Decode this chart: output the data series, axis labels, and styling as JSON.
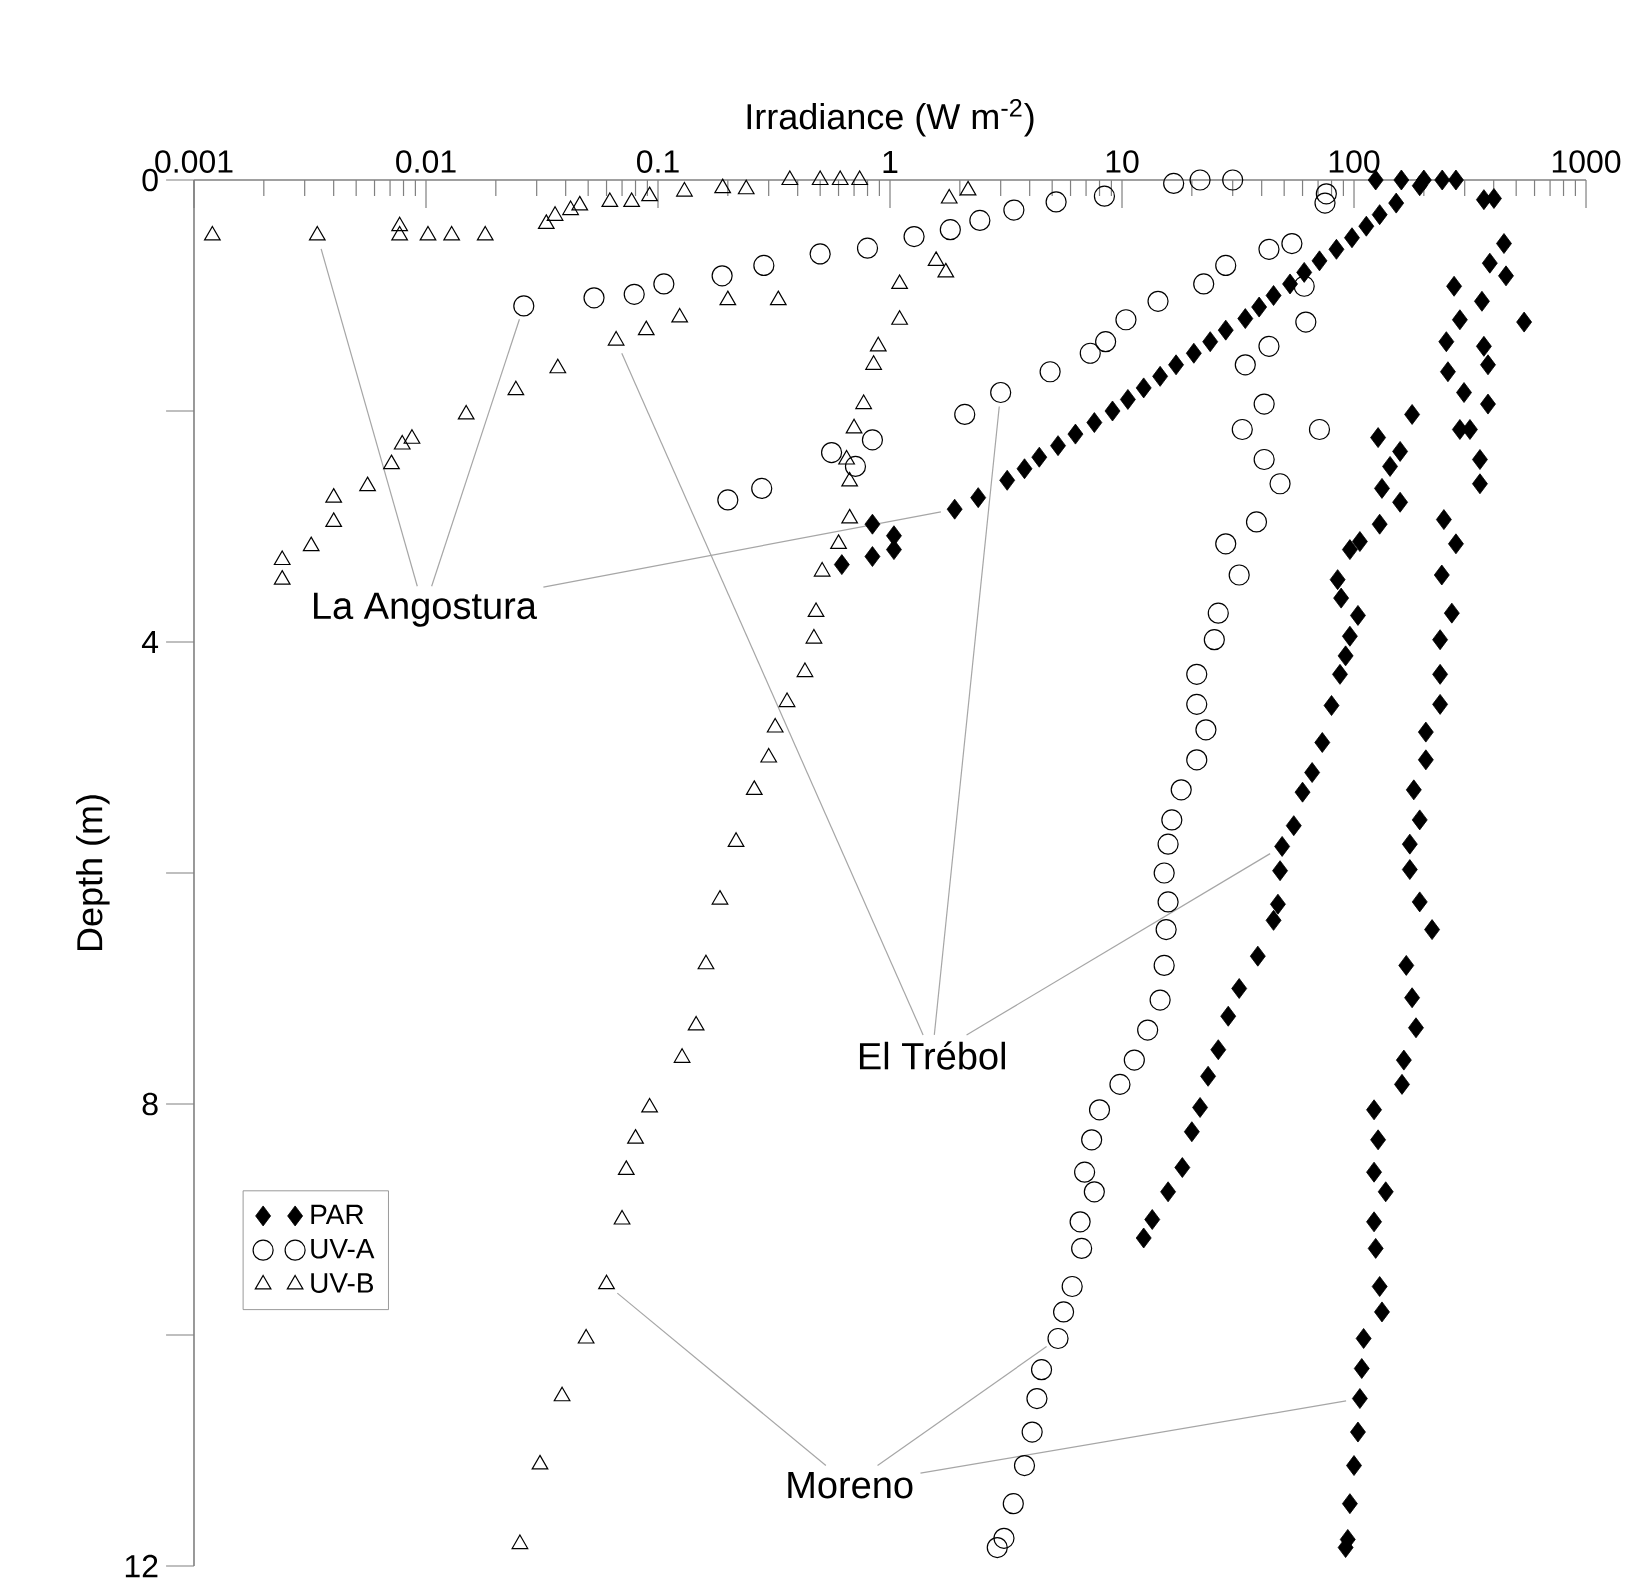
{
  "chart_data": {
    "type": "scatter",
    "xlabel": "Irradiance (W m$^{-2}$)",
    "ylabel": "Depth (m)",
    "log": "x",
    "xlim": [
      0.001,
      1000
    ],
    "xticks": [
      0.001,
      0.01,
      0.1,
      1,
      10,
      100,
      1000
    ],
    "ylim": [
      12,
      0
    ],
    "yticks": [
      0,
      {
        "value": 2,
        "label": null
      },
      4,
      {
        "value": 6,
        "label": null
      },
      8,
      {
        "value": 10,
        "label": null
      },
      12
    ],
    "legend": "left",
    "annotations": [
      {
        "text": "La Angostura",
        "x": 1.9,
        "y": 2.85
      },
      {
        "text": "El Trébol",
        "x": 49,
        "y": 5.77
      },
      {
        "text": "Moreno",
        "x": 106,
        "y": 10.55
      }
    ],
    "series": [
      {
        "name": "PAR",
        "color": "#000000",
        "marker": "diamond",
        "x": [
          124,
          160,
          192,
          152,
          129,
          113,
          98,
          84,
          71,
          61,
          53,
          45,
          39,
          34,
          28,
          24,
          20.4,
          17.1,
          14.6,
          12.4,
          10.6,
          9.1,
          7.6,
          6.3,
          5.3,
          4.4,
          3.8,
          3.2,
          2.4,
          1.9,
          0.84,
          1.04,
          1.04,
          0.84,
          0.62
        ],
        "values": [
          0,
          0,
          0.05,
          0.2,
          0.3,
          0.4,
          0.5,
          0.6,
          0.7,
          0.8,
          0.9,
          1.0,
          1.1,
          1.2,
          1.3,
          1.4,
          1.5,
          1.6,
          1.7,
          1.8,
          1.9,
          2.0,
          2.1,
          2.2,
          2.3,
          2.4,
          2.5,
          2.6,
          2.75,
          2.85,
          2.98,
          3.08,
          3.2,
          3.26,
          3.33
        ]
      },
      {
        "name": "UV-A",
        "color": "#000000",
        "marker": "circle",
        "x": [
          21.7,
          30,
          16.7,
          8.4,
          5.2,
          3.42,
          2.44,
          1.82,
          1.27,
          0.8,
          0.5,
          0.286,
          0.189,
          0.106,
          0.079,
          0.053,
          0.0264
        ],
        "values": [
          0,
          0,
          0.03,
          0.14,
          0.19,
          0.26,
          0.35,
          0.43,
          0.49,
          0.59,
          0.64,
          0.74,
          0.83,
          0.9,
          0.99,
          1.02,
          1.09
        ]
      },
      {
        "name": "UV-B",
        "color": "#000000",
        "marker": "triangle",
        "x": [
          0.37,
          0.5,
          0.61,
          0.74,
          0.092,
          0.062,
          0.077,
          0.046,
          0.042,
          0.036,
          0.033,
          0.0077,
          0.018,
          0.0129,
          0.0102,
          0.0077,
          0.0034,
          0.0012
        ],
        "values": [
          0,
          0,
          0,
          0,
          0.14,
          0.19,
          0.19,
          0.22,
          0.26,
          0.31,
          0.38,
          0.4,
          0.48,
          0.48,
          0.48,
          0.48,
          0.48,
          0.48
        ]
      },
      {
        "color": "#000000",
        "marker": "diamond",
        "x": [
          200,
          240,
          275,
          178,
          127,
          158,
          143,
          132,
          158,
          129,
          106,
          96,
          85,
          88,
          104,
          96,
          92,
          87,
          80,
          73,
          66,
          60,
          55,
          49,
          48,
          47,
          45,
          38.5,
          32,
          28.7,
          26,
          23.5,
          21.7,
          20,
          18.2,
          15.8,
          13.5,
          12.4
        ],
        "values": [
          0,
          0,
          0,
          2.03,
          2.23,
          2.35,
          2.48,
          2.67,
          2.79,
          2.98,
          3.13,
          3.2,
          3.46,
          3.62,
          3.77,
          3.95,
          4.12,
          4.28,
          4.55,
          4.87,
          5.13,
          5.3,
          5.59,
          5.77,
          5.98,
          6.27,
          6.41,
          6.72,
          7.0,
          7.24,
          7.53,
          7.76,
          8.03,
          8.24,
          8.55,
          8.76,
          9.0,
          9.16
        ]
      },
      {
        "color": "#000000",
        "marker": "circle",
        "x": [
          54,
          43,
          28,
          22.5,
          14.3,
          10.4,
          8.5,
          7.3,
          4.9,
          3.0,
          2.1,
          0.84,
          0.56,
          0.71,
          0.28,
          0.2
        ],
        "values": [
          0.55,
          0.6,
          0.74,
          0.9,
          1.05,
          1.21,
          1.4,
          1.5,
          1.66,
          1.84,
          2.03,
          2.25,
          2.36,
          2.48,
          2.67,
          2.77
        ]
      },
      {
        "color": "#000000",
        "marker": "triangle",
        "x": [
          0.19,
          0.24,
          0.13,
          0.2,
          0.33,
          0.124,
          0.089,
          0.066,
          0.037,
          0.0244,
          0.0149,
          0.0087,
          0.0079,
          0.0071,
          0.0056,
          0.004,
          0.004,
          0.0032,
          0.0024,
          0.0024
        ],
        "values": [
          0.07,
          0.08,
          0.1,
          1.04,
          1.04,
          1.19,
          1.3,
          1.39,
          1.63,
          1.82,
          2.03,
          2.24,
          2.29,
          2.46,
          2.65,
          2.75,
          2.96,
          3.17,
          3.29,
          3.46
        ]
      },
      {
        "color": "#000000",
        "marker": "diamond",
        "x": [
          401,
          363,
          443,
          385,
          452,
          270,
          356,
          286,
          541,
          250,
          363,
          378,
          254,
          298,
          378,
          286,
          316,
          349,
          349,
          244,
          275,
          239,
          264,
          235,
          235,
          235,
          204,
          204,
          181,
          192,
          174,
          174,
          192,
          217,
          168,
          178,
          185,
          164,
          161,
          122,
          127,
          122,
          137,
          122,
          124,
          129,
          132,
          110,
          108,
          106,
          104,
          100,
          96,
          94,
          92
        ],
        "values": [
          0.16,
          0.17,
          0.55,
          0.72,
          0.83,
          0.92,
          1.05,
          1.21,
          1.23,
          1.4,
          1.44,
          1.6,
          1.66,
          1.84,
          1.94,
          2.16,
          2.16,
          2.42,
          2.63,
          2.94,
          3.15,
          3.42,
          3.75,
          3.98,
          4.28,
          4.54,
          4.78,
          5.02,
          5.28,
          5.54,
          5.75,
          5.97,
          6.25,
          6.49,
          6.8,
          7.08,
          7.34,
          7.62,
          7.83,
          8.05,
          8.31,
          8.59,
          8.76,
          9.02,
          9.25,
          9.58,
          9.8,
          10.03,
          10.29,
          10.55,
          10.84,
          11.13,
          11.46,
          11.77,
          11.84
        ]
      },
      {
        "color": "#000000",
        "marker": "circle",
        "x": [
          76,
          75,
          61,
          62,
          43,
          34,
          41,
          71,
          33,
          41,
          48,
          38,
          28,
          32,
          26,
          25,
          21,
          21,
          23,
          21,
          18,
          16.4,
          15.8,
          15.2,
          15.8,
          15.5,
          15.2,
          14.6,
          12.9,
          11.3,
          9.8,
          8.0,
          7.4,
          6.9,
          7.6,
          6.6,
          6.7,
          6.1,
          5.6,
          5.3,
          4.5,
          4.3,
          4.1,
          3.8,
          3.4,
          3.1,
          2.9
        ],
        "values": [
          0.12,
          0.2,
          0.92,
          1.23,
          1.44,
          1.6,
          1.94,
          2.16,
          2.16,
          2.42,
          2.63,
          2.96,
          3.15,
          3.42,
          3.75,
          3.98,
          4.28,
          4.54,
          4.76,
          5.02,
          5.28,
          5.54,
          5.75,
          6.0,
          6.25,
          6.49,
          6.8,
          7.1,
          7.36,
          7.62,
          7.83,
          8.05,
          8.31,
          8.59,
          8.76,
          9.02,
          9.25,
          9.58,
          9.8,
          10.03,
          10.3,
          10.55,
          10.84,
          11.13,
          11.46,
          11.76,
          11.84
        ]
      },
      {
        "color": "#000000",
        "marker": "triangle",
        "x": [
          2.17,
          1.8,
          1.58,
          1.74,
          1.1,
          1.1,
          0.89,
          0.85,
          0.77,
          0.7,
          0.65,
          0.67,
          0.67,
          0.6,
          0.51,
          0.48,
          0.47,
          0.43,
          0.36,
          0.32,
          0.3,
          0.26,
          0.217,
          0.185,
          0.161,
          0.146,
          0.127,
          0.092,
          0.08,
          0.073,
          0.07,
          0.06,
          0.049,
          0.0386,
          0.031,
          0.0254
        ],
        "values": [
          0.09,
          0.16,
          0.7,
          0.8,
          0.9,
          1.21,
          1.44,
          1.6,
          1.94,
          2.15,
          2.42,
          2.61,
          2.93,
          3.15,
          3.39,
          3.74,
          3.97,
          4.26,
          4.52,
          4.74,
          5.0,
          5.28,
          5.73,
          6.23,
          6.79,
          7.32,
          7.6,
          8.03,
          8.3,
          8.57,
          9.0,
          9.56,
          10.03,
          10.53,
          11.12,
          11.81
        ]
      }
    ]
  }
}
